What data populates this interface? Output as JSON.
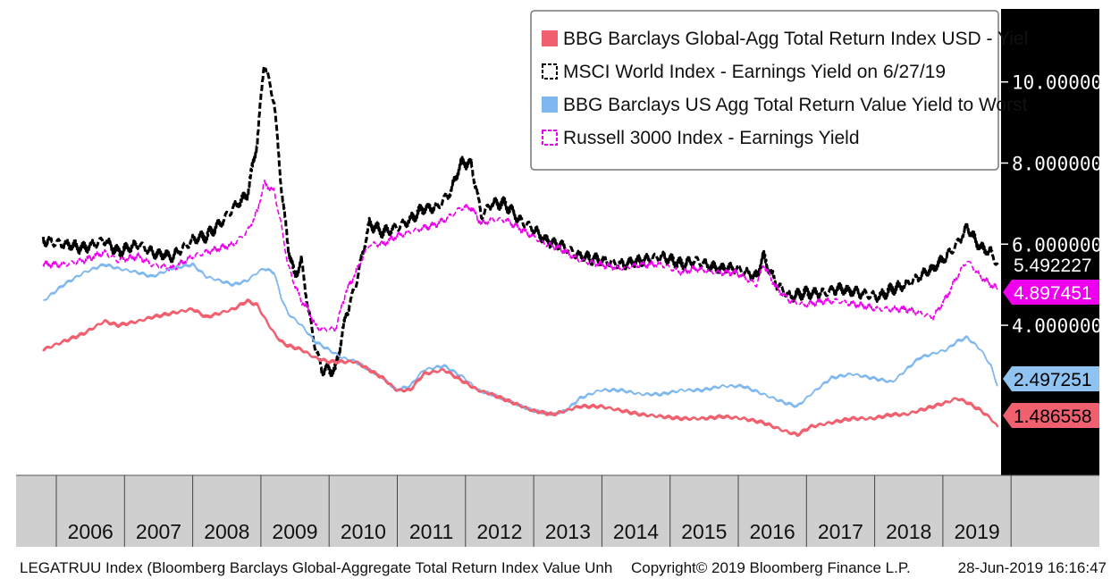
{
  "chart_data": {
    "type": "line",
    "x_labels": [
      "2006",
      "2007",
      "2008",
      "2009",
      "2010",
      "2011",
      "2012",
      "2013",
      "2014",
      "2015",
      "2016",
      "2017",
      "2018",
      "2019"
    ],
    "ylim": [
      0.3,
      11.8
    ],
    "y_ticks": [
      "10.000000",
      "8.000000",
      "6.000000",
      "4.000000"
    ],
    "y_tick_values": [
      10,
      8,
      6,
      4
    ],
    "legend": [
      {
        "label": "BBG Barclays Global-Agg Total Return Index USD - Yiel",
        "color": "#f0606e",
        "style": "solid"
      },
      {
        "label": "MSCI World Index - Earnings Yield on 6/27/19",
        "color": "#000000",
        "style": "dashed"
      },
      {
        "label": "BBG Barclays US Agg Total Return Value Yield to Worst",
        "color": "#7fb8f0",
        "style": "solid"
      },
      {
        "label": "Russell 3000 Index - Earnings Yield",
        "color": "#ee00ee",
        "style": "dashed"
      }
    ],
    "series": [
      {
        "name": "MSCI World Index - Earnings Yield",
        "color": "#000000",
        "dash": "7,3",
        "width": 3,
        "x": [
          2005.4,
          2005.7,
          2006.0,
          2006.3,
          2006.5,
          2006.8,
          2007.0,
          2007.3,
          2007.6,
          2007.8,
          2008.0,
          2008.2,
          2008.4,
          2008.55,
          2008.65,
          2008.8,
          2008.9,
          2009.0,
          2009.1,
          2009.2,
          2009.3,
          2009.4,
          2009.5,
          2009.7,
          2009.85,
          2010.0,
          2010.2,
          2010.4,
          2010.6,
          2010.8,
          2011.0,
          2011.2,
          2011.4,
          2011.55,
          2011.7,
          2011.85,
          2012.0,
          2012.2,
          2012.4,
          2012.6,
          2012.8,
          2013.0,
          2013.3,
          2013.6,
          2013.9,
          2014.2,
          2014.5,
          2014.8,
          2015.0,
          2015.3,
          2015.6,
          2015.9,
          2016.0,
          2016.2,
          2016.4,
          2016.6,
          2016.9,
          2017.1,
          2017.4,
          2017.7,
          2017.9,
          2018.1,
          2018.3,
          2018.5,
          2018.7,
          2018.85,
          2019.0,
          2019.2,
          2019.35,
          2019.45
        ],
        "y": [
          6.1,
          6.0,
          5.9,
          6.1,
          5.8,
          6.0,
          5.8,
          5.7,
          6.1,
          6.2,
          6.5,
          6.9,
          7.2,
          8.5,
          10.5,
          9.5,
          7.5,
          6.0,
          5.2,
          5.6,
          4.4,
          3.5,
          2.9,
          2.9,
          4.2,
          5.0,
          6.5,
          6.3,
          6.4,
          6.6,
          6.9,
          6.9,
          7.3,
          8.0,
          8.0,
          6.7,
          7.0,
          7.0,
          6.6,
          6.4,
          6.1,
          6.0,
          5.7,
          5.6,
          5.5,
          5.6,
          5.7,
          5.5,
          5.6,
          5.4,
          5.4,
          5.2,
          5.7,
          5.0,
          4.7,
          4.8,
          4.8,
          4.9,
          4.8,
          4.7,
          4.9,
          5.0,
          5.2,
          5.4,
          5.7,
          6.0,
          6.4,
          5.9,
          5.8,
          5.49
        ]
      },
      {
        "name": "Russell 3000 Index - Earnings Yield",
        "color": "#ee00ee",
        "dash": "6,3",
        "width": 1.6,
        "x": [
          2005.4,
          2005.7,
          2006.0,
          2006.3,
          2006.5,
          2006.8,
          2007.0,
          2007.3,
          2007.6,
          2007.8,
          2008.0,
          2008.2,
          2008.4,
          2008.55,
          2008.65,
          2008.8,
          2008.9,
          2009.0,
          2009.1,
          2009.2,
          2009.3,
          2009.4,
          2009.5,
          2009.7,
          2009.85,
          2010.0,
          2010.2,
          2010.4,
          2010.6,
          2010.8,
          2011.0,
          2011.2,
          2011.4,
          2011.55,
          2011.7,
          2011.85,
          2012.0,
          2012.2,
          2012.4,
          2012.6,
          2012.8,
          2013.0,
          2013.3,
          2013.6,
          2013.9,
          2014.2,
          2014.5,
          2014.8,
          2015.0,
          2015.3,
          2015.6,
          2015.9,
          2016.0,
          2016.2,
          2016.4,
          2016.6,
          2016.9,
          2017.1,
          2017.4,
          2017.7,
          2017.9,
          2018.1,
          2018.3,
          2018.5,
          2018.7,
          2018.85,
          2019.0,
          2019.2,
          2019.35,
          2019.45
        ],
        "y": [
          5.5,
          5.5,
          5.6,
          5.8,
          5.6,
          5.7,
          5.5,
          5.4,
          5.7,
          5.8,
          5.9,
          6.0,
          6.3,
          6.8,
          7.5,
          7.3,
          6.5,
          5.5,
          5.0,
          4.6,
          4.4,
          4.0,
          3.9,
          3.9,
          4.8,
          5.3,
          6.0,
          6.0,
          6.2,
          6.3,
          6.4,
          6.5,
          6.7,
          6.9,
          6.9,
          6.5,
          6.6,
          6.6,
          6.4,
          6.2,
          6.0,
          5.9,
          5.6,
          5.5,
          5.4,
          5.5,
          5.5,
          5.3,
          5.4,
          5.3,
          5.3,
          5.0,
          5.5,
          4.9,
          4.6,
          4.5,
          4.6,
          4.6,
          4.5,
          4.4,
          4.4,
          4.4,
          4.3,
          4.2,
          4.7,
          5.2,
          5.6,
          5.2,
          5.0,
          4.9
        ]
      },
      {
        "name": "BBG Barclays US Agg Total Return Value Yield to Worst",
        "color": "#7fb8f0",
        "dash": "",
        "width": 1.8,
        "x": [
          2005.4,
          2005.7,
          2006.0,
          2006.3,
          2006.5,
          2006.8,
          2007.0,
          2007.3,
          2007.6,
          2007.8,
          2008.0,
          2008.2,
          2008.4,
          2008.55,
          2008.65,
          2008.8,
          2008.9,
          2009.0,
          2009.2,
          2009.4,
          2009.6,
          2009.8,
          2010.0,
          2010.2,
          2010.4,
          2010.6,
          2010.8,
          2011.0,
          2011.3,
          2011.6,
          2011.8,
          2012.0,
          2012.3,
          2012.6,
          2012.9,
          2013.1,
          2013.3,
          2013.6,
          2013.9,
          2014.2,
          2014.5,
          2014.8,
          2015.1,
          2015.4,
          2015.7,
          2016.0,
          2016.3,
          2016.5,
          2016.7,
          2017.0,
          2017.3,
          2017.6,
          2017.9,
          2018.1,
          2018.3,
          2018.5,
          2018.7,
          2018.85,
          2019.0,
          2019.2,
          2019.35,
          2019.45
        ],
        "y": [
          4.6,
          5.0,
          5.3,
          5.5,
          5.4,
          5.3,
          5.2,
          5.4,
          5.5,
          5.2,
          5.1,
          5.0,
          5.1,
          5.3,
          5.4,
          5.3,
          4.7,
          4.3,
          4.0,
          3.6,
          3.4,
          3.2,
          3.1,
          2.9,
          2.7,
          2.4,
          2.5,
          2.9,
          3.0,
          2.7,
          2.4,
          2.3,
          2.1,
          1.9,
          1.8,
          1.9,
          2.2,
          2.4,
          2.4,
          2.3,
          2.3,
          2.4,
          2.4,
          2.5,
          2.5,
          2.3,
          2.1,
          2.0,
          2.3,
          2.7,
          2.8,
          2.7,
          2.6,
          2.9,
          3.2,
          3.3,
          3.4,
          3.6,
          3.7,
          3.4,
          3.0,
          2.5
        ]
      },
      {
        "name": "BBG Barclays Global-Agg Total Return Index USD - Yield",
        "color": "#f0606e",
        "dash": "",
        "width": 2.4,
        "x": [
          2005.4,
          2005.7,
          2006.0,
          2006.3,
          2006.5,
          2006.8,
          2007.0,
          2007.3,
          2007.6,
          2007.8,
          2008.0,
          2008.2,
          2008.4,
          2008.55,
          2008.65,
          2008.8,
          2008.9,
          2009.0,
          2009.2,
          2009.4,
          2009.6,
          2009.8,
          2010.0,
          2010.2,
          2010.4,
          2010.6,
          2010.8,
          2011.0,
          2011.3,
          2011.6,
          2011.8,
          2012.0,
          2012.3,
          2012.6,
          2012.9,
          2013.1,
          2013.3,
          2013.6,
          2013.9,
          2014.2,
          2014.5,
          2014.8,
          2015.1,
          2015.4,
          2015.7,
          2016.0,
          2016.3,
          2016.5,
          2016.7,
          2017.0,
          2017.3,
          2017.6,
          2017.9,
          2018.1,
          2018.3,
          2018.5,
          2018.7,
          2018.85,
          2019.0,
          2019.2,
          2019.35,
          2019.45
        ],
        "y": [
          3.4,
          3.6,
          3.8,
          4.1,
          4.0,
          4.1,
          4.2,
          4.3,
          4.4,
          4.2,
          4.3,
          4.4,
          4.6,
          4.5,
          4.2,
          3.8,
          3.6,
          3.5,
          3.4,
          3.2,
          3.1,
          3.1,
          3.1,
          2.9,
          2.7,
          2.4,
          2.4,
          2.8,
          2.9,
          2.6,
          2.4,
          2.3,
          2.1,
          1.9,
          1.8,
          1.9,
          2.0,
          2.0,
          1.9,
          1.8,
          1.75,
          1.7,
          1.7,
          1.75,
          1.7,
          1.6,
          1.4,
          1.3,
          1.5,
          1.6,
          1.7,
          1.7,
          1.8,
          1.8,
          1.9,
          2.0,
          2.1,
          2.2,
          2.1,
          1.9,
          1.7,
          1.49
        ]
      }
    ],
    "last_values": [
      {
        "label": "5.492227",
        "bg": "#000000",
        "fg": "#ffffff",
        "value": 5.4922
      },
      {
        "label": "4.897451",
        "bg": "#ee00ee",
        "fg": "#ffffff",
        "value": 4.8975
      },
      {
        "label": "2.497251",
        "bg": "#8fc4f2",
        "fg": "#000000",
        "value": 2.4973
      },
      {
        "label": "1.486558",
        "bg": "#f0606e",
        "fg": "#000000",
        "value": 1.4866
      }
    ]
  },
  "footer": {
    "left": "LEGATRUU Index (Bloomberg Barclays Global-Aggregate Total Return Index Value Unh",
    "center": "Copyright© 2019 Bloomberg Finance L.P.",
    "right": "28-Jun-2019 16:16:47"
  }
}
